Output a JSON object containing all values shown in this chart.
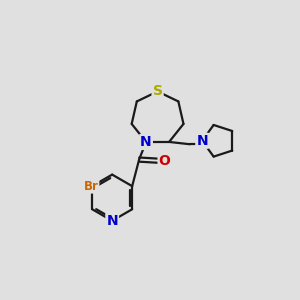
{
  "background_color": "#e0e0e0",
  "bond_color": "#1a1a1a",
  "S_color": "#aaaa00",
  "N_color": "#0000cc",
  "O_color": "#cc0000",
  "Br_color": "#cc6600",
  "figsize": [
    3.0,
    3.0
  ],
  "dpi": 100,
  "xlim": [
    0,
    10
  ],
  "ylim": [
    0,
    10
  ],
  "lw": 1.6,
  "fontsize": 10
}
